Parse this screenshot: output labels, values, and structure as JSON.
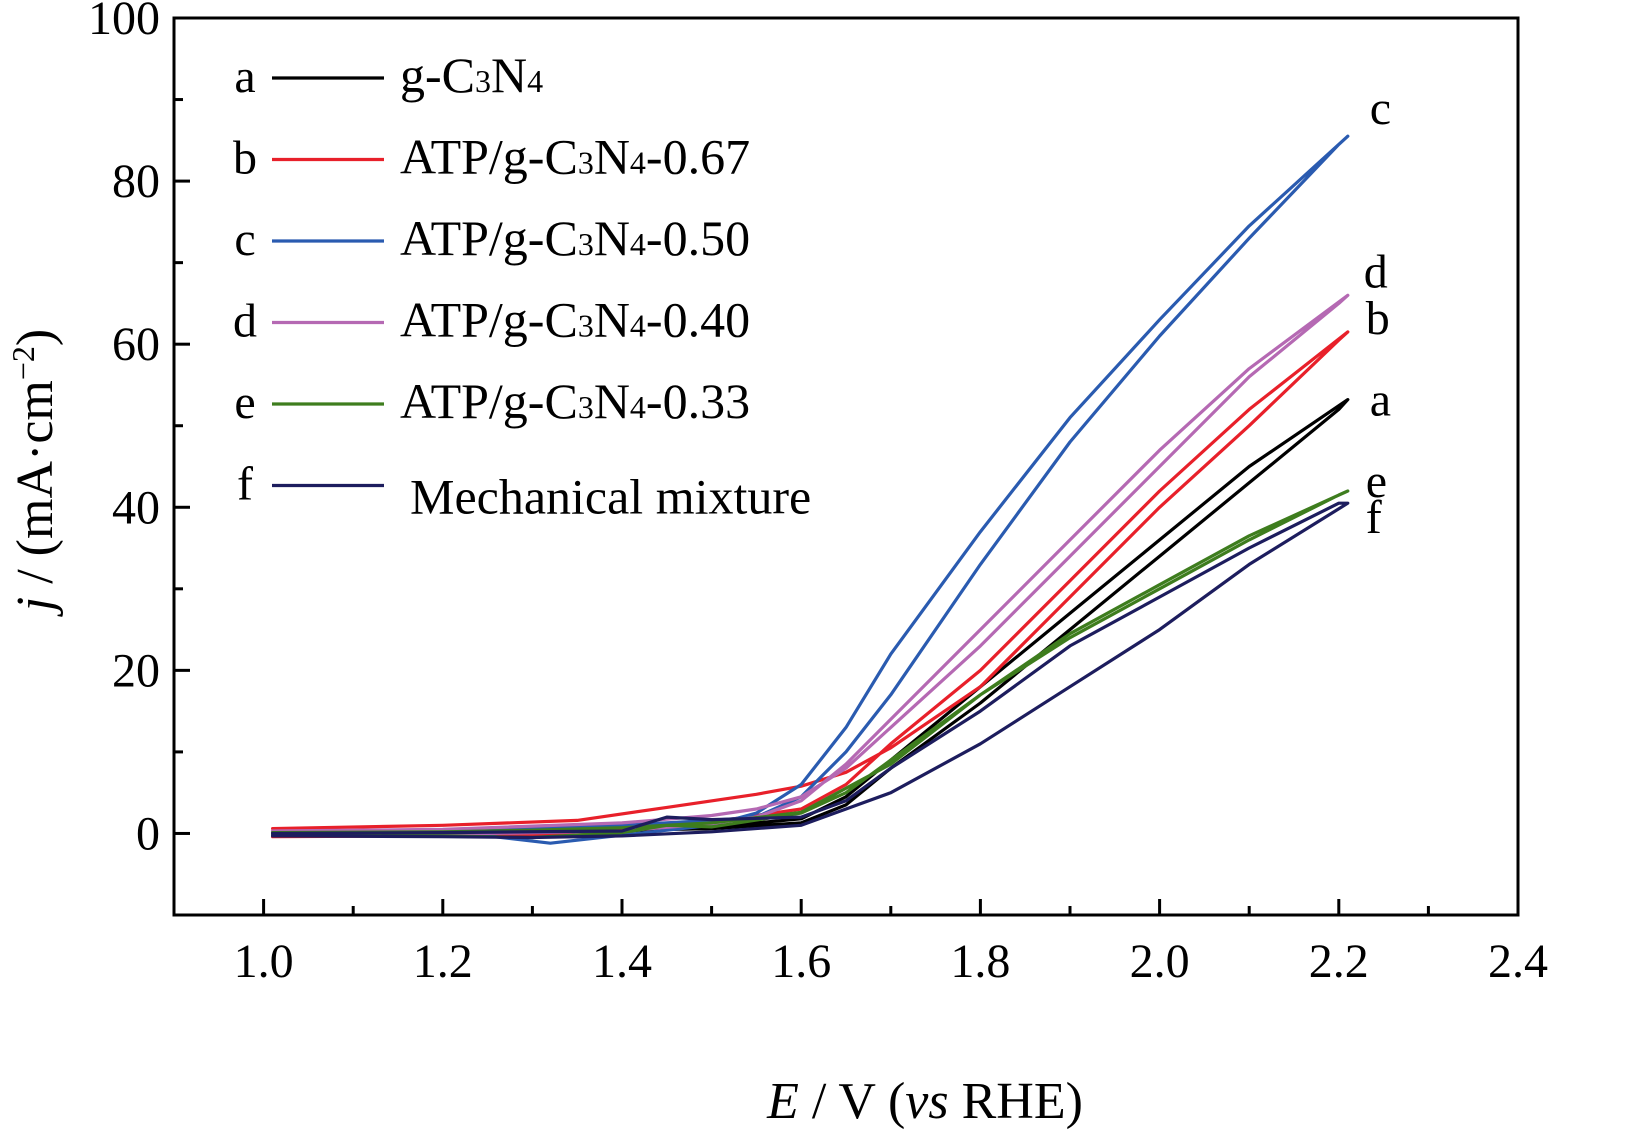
{
  "chart_data": {
    "type": "line",
    "title": "",
    "xlabel": {
      "italic": "E",
      "rest1": " / V (",
      "italic2": "vs",
      "rest2": " RHE)"
    },
    "ylabel": {
      "italic": "j",
      "rest": " / (mA·cm",
      "sup": "−2",
      "close": ")"
    },
    "xlim": [
      0.9,
      2.4
    ],
    "ylim": [
      -10,
      100
    ],
    "xticks": [
      "1.0",
      "1.2",
      "1.4",
      "1.6",
      "1.8",
      "2.0",
      "2.2",
      "2.4"
    ],
    "xtick_values": [
      1.0,
      1.2,
      1.4,
      1.6,
      1.8,
      2.0,
      2.2,
      2.4
    ],
    "yticks": [
      "0",
      "20",
      "40",
      "60",
      "80",
      "100"
    ],
    "ytick_values": [
      0,
      20,
      40,
      60,
      80,
      100
    ],
    "legend_position": "top-left",
    "series": [
      {
        "key": "a",
        "letter": "a",
        "color": "#000000",
        "name_parts": [
          "g-C",
          "3",
          "N",
          "4",
          ""
        ],
        "end_label": "a",
        "forward": [
          [
            1.01,
            0.1
          ],
          [
            1.2,
            0.2
          ],
          [
            1.4,
            0.4
          ],
          [
            1.5,
            0.6
          ],
          [
            1.6,
            1.3
          ],
          [
            1.65,
            3.5
          ],
          [
            1.7,
            8
          ],
          [
            1.8,
            16
          ],
          [
            1.9,
            25
          ],
          [
            2.0,
            34
          ],
          [
            2.1,
            43
          ],
          [
            2.2,
            52
          ]
        ],
        "reverse": [
          [
            2.21,
            53.2
          ],
          [
            2.1,
            45
          ],
          [
            2.0,
            36
          ],
          [
            1.9,
            27
          ],
          [
            1.8,
            18
          ],
          [
            1.7,
            9
          ],
          [
            1.65,
            4.5
          ],
          [
            1.6,
            1.8
          ],
          [
            1.5,
            0.8
          ],
          [
            1.4,
            0.3
          ],
          [
            1.3,
            -0.2
          ],
          [
            1.2,
            -0.2
          ],
          [
            1.01,
            -0.2
          ]
        ]
      },
      {
        "key": "b",
        "letter": "b",
        "color": "#e8202a",
        "name_parts": [
          "ATP/g-C",
          "3",
          "N",
          "4",
          "-0.67"
        ],
        "end_label": "b",
        "forward": [
          [
            1.01,
            0.6
          ],
          [
            1.2,
            1.0
          ],
          [
            1.35,
            1.6
          ],
          [
            1.45,
            3.2
          ],
          [
            1.55,
            4.8
          ],
          [
            1.6,
            5.8
          ],
          [
            1.65,
            7.5
          ],
          [
            1.7,
            10.5
          ],
          [
            1.8,
            18
          ],
          [
            1.9,
            29
          ],
          [
            2.0,
            40
          ],
          [
            2.1,
            50
          ],
          [
            2.2,
            60.5
          ]
        ],
        "reverse": [
          [
            2.21,
            61.5
          ],
          [
            2.1,
            52
          ],
          [
            2.0,
            42
          ],
          [
            1.9,
            31
          ],
          [
            1.8,
            20
          ],
          [
            1.7,
            11
          ],
          [
            1.65,
            6
          ],
          [
            1.6,
            3
          ],
          [
            1.5,
            1.4
          ],
          [
            1.4,
            0.6
          ],
          [
            1.3,
            -0.2
          ],
          [
            1.2,
            -0.3
          ],
          [
            1.01,
            -0.4
          ]
        ]
      },
      {
        "key": "c",
        "letter": "c",
        "color": "#2a5bb0",
        "name_parts": [
          "ATP/g-C",
          "3",
          "N",
          "4",
          "-0.50"
        ],
        "end_label": "c",
        "forward": [
          [
            1.01,
            0.2
          ],
          [
            1.2,
            0.4
          ],
          [
            1.3,
            0.6
          ],
          [
            1.4,
            1.0
          ],
          [
            1.5,
            1.6
          ],
          [
            1.55,
            2.0
          ],
          [
            1.6,
            4.5
          ],
          [
            1.65,
            10
          ],
          [
            1.7,
            17
          ],
          [
            1.8,
            33
          ],
          [
            1.9,
            48
          ],
          [
            2.0,
            61
          ],
          [
            2.1,
            73
          ],
          [
            2.2,
            84.5
          ]
        ],
        "reverse": [
          [
            2.21,
            85.5
          ],
          [
            2.1,
            74.5
          ],
          [
            2.0,
            63
          ],
          [
            1.9,
            51
          ],
          [
            1.8,
            37
          ],
          [
            1.7,
            22
          ],
          [
            1.65,
            13
          ],
          [
            1.6,
            6
          ],
          [
            1.55,
            2.5
          ],
          [
            1.5,
            1.0
          ],
          [
            1.4,
            -0.2
          ],
          [
            1.32,
            -1.2
          ],
          [
            1.25,
            -0.3
          ],
          [
            1.1,
            0.0
          ],
          [
            1.01,
            0.0
          ]
        ]
      },
      {
        "key": "d",
        "letter": "d",
        "color": "#b569b3",
        "name_parts": [
          "ATP/g-C",
          "3",
          "N",
          "4",
          "-0.40"
        ],
        "end_label": "d",
        "forward": [
          [
            1.01,
            0.3
          ],
          [
            1.2,
            0.5
          ],
          [
            1.4,
            1.3
          ],
          [
            1.5,
            2.2
          ],
          [
            1.55,
            3.0
          ],
          [
            1.6,
            4.5
          ],
          [
            1.65,
            8
          ],
          [
            1.7,
            13
          ],
          [
            1.8,
            23
          ],
          [
            1.9,
            34
          ],
          [
            2.0,
            45
          ],
          [
            2.1,
            56
          ],
          [
            2.2,
            65
          ]
        ],
        "reverse": [
          [
            2.21,
            66
          ],
          [
            2.1,
            57
          ],
          [
            2.0,
            47
          ],
          [
            1.9,
            36
          ],
          [
            1.8,
            25
          ],
          [
            1.7,
            14
          ],
          [
            1.65,
            8.5
          ],
          [
            1.6,
            4
          ],
          [
            1.55,
            2.0
          ],
          [
            1.5,
            1.2
          ],
          [
            1.4,
            0.3
          ],
          [
            1.2,
            -0.1
          ],
          [
            1.01,
            -0.2
          ]
        ]
      },
      {
        "key": "e",
        "letter": "e",
        "color": "#3e7d1e",
        "name_parts": [
          "ATP/g-C",
          "3",
          "N",
          "4",
          "-0.33"
        ],
        "end_label": "e",
        "forward": [
          [
            1.01,
            0.1
          ],
          [
            1.2,
            0.2
          ],
          [
            1.3,
            0.4
          ],
          [
            1.4,
            0.7
          ],
          [
            1.5,
            1.3
          ],
          [
            1.6,
            2.6
          ],
          [
            1.7,
            8.5
          ],
          [
            1.8,
            17
          ],
          [
            1.9,
            24
          ],
          [
            2.0,
            30
          ],
          [
            2.1,
            36
          ],
          [
            2.2,
            41.5
          ]
        ],
        "reverse": [
          [
            2.21,
            42
          ],
          [
            2.1,
            36.5
          ],
          [
            2.0,
            30.5
          ],
          [
            1.9,
            24.5
          ],
          [
            1.8,
            17
          ],
          [
            1.7,
            9
          ],
          [
            1.65,
            5
          ],
          [
            1.6,
            2.5
          ],
          [
            1.5,
            0.8
          ],
          [
            1.45,
            1.0
          ],
          [
            1.4,
            0.1
          ],
          [
            1.3,
            -0.5
          ],
          [
            1.2,
            -0.3
          ],
          [
            1.01,
            -0.2
          ]
        ]
      },
      {
        "key": "f",
        "letter": "f",
        "color": "#1d1d5e",
        "name_parts": [
          "Mechanical mixture",
          "",
          "",
          "",
          ""
        ],
        "end_label": "f",
        "forward": [
          [
            1.01,
            0.0
          ],
          [
            1.2,
            0.1
          ],
          [
            1.4,
            0.3
          ],
          [
            1.45,
            2.0
          ],
          [
            1.5,
            1.7
          ],
          [
            1.6,
            2.0
          ],
          [
            1.65,
            4
          ],
          [
            1.7,
            8
          ],
          [
            1.8,
            15
          ],
          [
            1.9,
            23
          ],
          [
            2.0,
            29
          ],
          [
            2.1,
            35
          ],
          [
            2.2,
            40.5
          ]
        ],
        "reverse": [
          [
            2.21,
            40.5
          ],
          [
            2.1,
            33
          ],
          [
            2.0,
            25
          ],
          [
            1.9,
            18
          ],
          [
            1.8,
            11
          ],
          [
            1.7,
            5
          ],
          [
            1.65,
            3
          ],
          [
            1.6,
            1.0
          ],
          [
            1.5,
            0.2
          ],
          [
            1.4,
            -0.3
          ],
          [
            1.3,
            -0.5
          ],
          [
            1.2,
            -0.4
          ],
          [
            1.01,
            -0.3
          ]
        ]
      }
    ]
  }
}
